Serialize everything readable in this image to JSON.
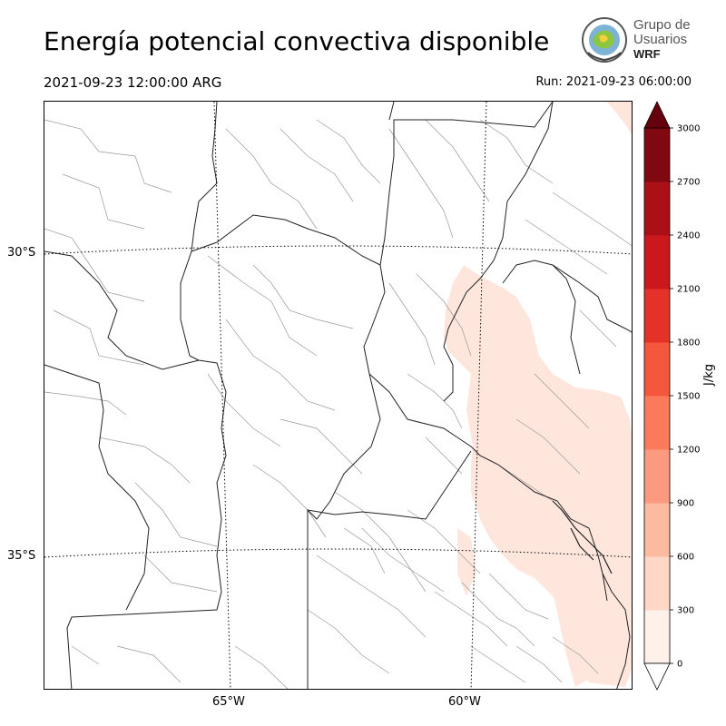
{
  "title": "Energía potencial convectiva disponible",
  "valid_time": "2021-09-23 12:00:00 ARG",
  "run_time": "Run: 2021-09-23 06:00:00",
  "logo": {
    "line1": "Grupo de",
    "line2": "Usuarios",
    "line3": "WRF"
  },
  "map": {
    "lat_labels": [
      "30°S",
      "35°S"
    ],
    "lon_labels": [
      "65°W",
      "60°W"
    ],
    "field_color": "#fee6dc"
  },
  "colorbar": {
    "unit": "J/kg",
    "levels": [
      0,
      300,
      600,
      900,
      1200,
      1500,
      1800,
      2100,
      2400,
      2700,
      3000
    ],
    "tick_labels": [
      "0",
      "300",
      "600",
      "900",
      "1200",
      "1500",
      "1800",
      "2100",
      "2400",
      "2700",
      "3000"
    ],
    "colors": [
      "#fff0ea",
      "#fed7c7",
      "#fcbba1",
      "#fc9a7f",
      "#fb7a5b",
      "#f5573d",
      "#e53228",
      "#cb181d",
      "#ab1016",
      "#800811"
    ],
    "extend_color": "#67000d"
  }
}
